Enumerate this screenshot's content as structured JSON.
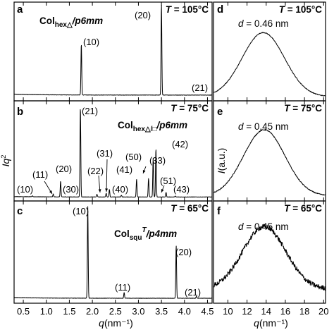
{
  "figure": {
    "xlabel_left": "q(nm⁻¹)",
    "xlabel_right": "q(nm⁻¹)",
    "ylabel_left": "Iq²",
    "ylabel_right": "I(a.u.)"
  },
  "chart_data": [
    {
      "type": "line",
      "panel": "a",
      "temperature": "T = 105°C",
      "phase": {
        "main": "Col",
        "sub": "hex△",
        "rest": "/p6mm"
      },
      "xlim": [
        0.3,
        4.6
      ],
      "ylim": [
        0,
        1
      ],
      "baseline": 0.04,
      "peaks": [
        {
          "label": "(10)",
          "q": 1.76,
          "height": 0.56
        },
        {
          "label": "(20)",
          "q": 3.5,
          "height": 1.0
        },
        {
          "label": "(21)",
          "q": 4.48,
          "height": 0.0
        }
      ]
    },
    {
      "type": "line",
      "panel": "b",
      "temperature": "T = 75°C",
      "phase": {
        "main": "Col",
        "sub": "hex△/□",
        "rest": "/p6mm"
      },
      "xlim": [
        0.3,
        4.6
      ],
      "ylim": [
        0,
        1
      ],
      "baseline": 0.02,
      "peaks": [
        {
          "label": "(10)",
          "q": 0.7,
          "height": 0.01
        },
        {
          "label": "(11)",
          "q": 1.15,
          "height": 0.03
        },
        {
          "label": "(20)",
          "q": 1.31,
          "height": 0.17
        },
        {
          "label": "(21)",
          "q": 1.74,
          "height": 0.97
        },
        {
          "label": "(30)",
          "q": 2.1,
          "height": 0.03
        },
        {
          "label": "(22)",
          "q": 2.3,
          "height": 0.04
        },
        {
          "label": "(31)",
          "q": 2.37,
          "height": 0.08
        },
        {
          "label": "(40)",
          "q": 2.63,
          "height": 0.02
        },
        {
          "label": "(41)",
          "q": 2.96,
          "height": 0.19
        },
        {
          "label": "(50)",
          "q": 3.22,
          "height": 0.2
        },
        {
          "label": "(42)",
          "q": 3.32,
          "height": 0.42
        },
        {
          "label": "(33)",
          "q": 3.38,
          "height": 0.52
        },
        {
          "label": "(51)",
          "q": 3.6,
          "height": 0.05
        },
        {
          "label": "(43)",
          "q": 3.8,
          "height": 0.01
        }
      ]
    },
    {
      "type": "line",
      "panel": "c",
      "temperature": "T = 65°C",
      "phase": {
        "main": "Col",
        "sub": "squ",
        "sup": "T",
        "rest": "/p4mm"
      },
      "xlim": [
        0.3,
        4.6
      ],
      "ylim": [
        0,
        1
      ],
      "baseline": 0.03,
      "peaks": [
        {
          "label": "(10)",
          "q": 1.9,
          "height": 0.97
        },
        {
          "label": "(11)",
          "q": 2.69,
          "height": 0.06
        },
        {
          "label": "(20)",
          "q": 3.82,
          "height": 0.56
        },
        {
          "label": "(21)",
          "q": 4.26,
          "height": 0.02
        }
      ]
    },
    {
      "type": "line",
      "panel": "d",
      "temperature": "T = 105°C",
      "annotation": "d = 0.46 nm",
      "xlim": [
        8.5,
        20.2
      ],
      "ylim": [
        0,
        1
      ],
      "center": 13.7,
      "fwhm": 5.2,
      "amplitude": 0.68,
      "offset": 0.02,
      "noise": 0.004
    },
    {
      "type": "line",
      "panel": "e",
      "temperature": "T = 75°C",
      "annotation": "d = 0.45 nm",
      "xlim": [
        8.5,
        20.2
      ],
      "ylim": [
        0,
        1
      ],
      "center": 13.8,
      "fwhm": 5.1,
      "amplitude": 0.69,
      "offset": 0.03,
      "noise": 0.005
    },
    {
      "type": "line",
      "panel": "f",
      "temperature": "T = 65°C",
      "annotation": "d = 0.45 nm",
      "xlim": [
        8.5,
        20.2
      ],
      "ylim": [
        0,
        1
      ],
      "center": 13.8,
      "fwhm": 5.3,
      "amplitude": 0.64,
      "offset": 0.12,
      "noise": 0.025
    }
  ],
  "axes": {
    "left_ticks": [
      "0.5",
      "1.0",
      "1.5",
      "2.0",
      "2.5",
      "3.0",
      "3.5",
      "4.0",
      "4.5"
    ],
    "left_tick_values": [
      0.5,
      1.0,
      1.5,
      2.0,
      2.5,
      3.0,
      3.5,
      4.0,
      4.5
    ],
    "right_ticks": [
      "10",
      "12",
      "14",
      "16",
      "18",
      "20"
    ],
    "right_tick_values": [
      10,
      12,
      14,
      16,
      18,
      20
    ]
  }
}
